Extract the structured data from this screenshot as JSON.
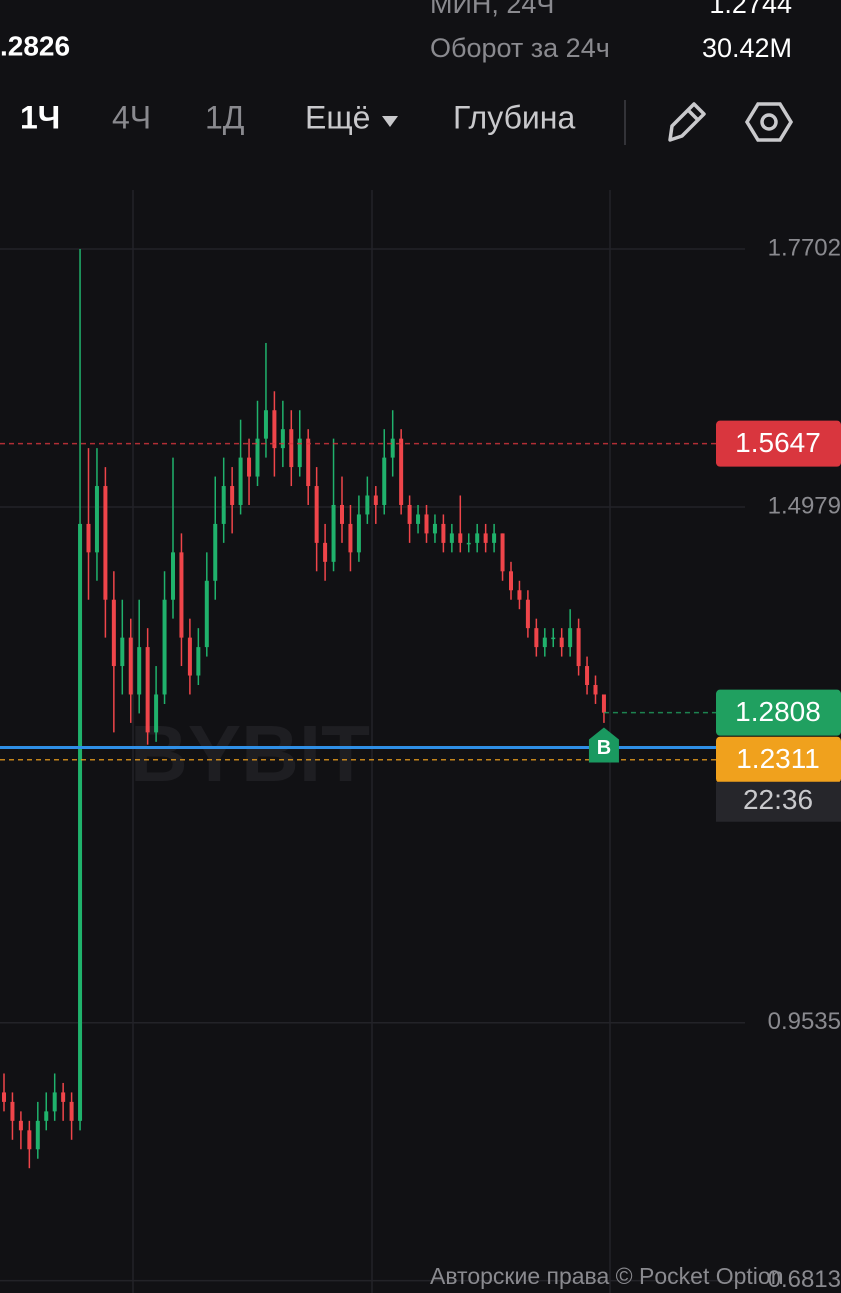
{
  "header": {
    "price_partial": ".2826",
    "low_label": "МИН, 24Ч",
    "low_value": "1.2744",
    "turnover_label": "Оборот за 24ч",
    "turnover_value": "30.42M"
  },
  "tabs": [
    "1Ч",
    "4Ч",
    "1Д",
    "Ещё",
    "Глубина"
  ],
  "watermark": "BYBIT",
  "copyright": "Авторские права © Pocket Option",
  "chart_data": {
    "type": "candlestick",
    "up_color": "#20b26c",
    "down_color": "#ef454a",
    "open": [
      0.88,
      0.87,
      0.85,
      0.84,
      0.82,
      0.85,
      0.86,
      0.88,
      0.87,
      0.85,
      1.48,
      1.45,
      1.52,
      1.4,
      1.33,
      1.36,
      1.3,
      1.35,
      1.26,
      1.3,
      1.4,
      1.45,
      1.36,
      1.32,
      1.35,
      1.42,
      1.48,
      1.52,
      1.5,
      1.55,
      1.53,
      1.57,
      1.6,
      1.56,
      1.58,
      1.54,
      1.57,
      1.52,
      1.46,
      1.44,
      1.5,
      1.48,
      1.45,
      1.49,
      1.51,
      1.5,
      1.55,
      1.57,
      1.5,
      1.48,
      1.49,
      1.47,
      1.48,
      1.46,
      1.47,
      1.46,
      1.46,
      1.47,
      1.46,
      1.47,
      1.43,
      1.41,
      1.4,
      1.37,
      1.35,
      1.36,
      1.36,
      1.35,
      1.37,
      1.33,
      1.31,
      1.3
    ],
    "high": [
      0.9,
      0.88,
      0.86,
      0.85,
      0.87,
      0.88,
      0.9,
      0.89,
      0.88,
      1.7702,
      1.56,
      1.56,
      1.54,
      1.43,
      1.4,
      1.38,
      1.4,
      1.37,
      1.33,
      1.43,
      1.55,
      1.47,
      1.38,
      1.37,
      1.45,
      1.53,
      1.55,
      1.54,
      1.59,
      1.57,
      1.61,
      1.671,
      1.62,
      1.61,
      1.6,
      1.6,
      1.58,
      1.54,
      1.48,
      1.57,
      1.53,
      1.5,
      1.51,
      1.53,
      1.52,
      1.58,
      1.6,
      1.58,
      1.51,
      1.5,
      1.5,
      1.49,
      1.49,
      1.48,
      1.51,
      1.47,
      1.48,
      1.48,
      1.48,
      1.47,
      1.44,
      1.42,
      1.41,
      1.38,
      1.37,
      1.37,
      1.37,
      1.39,
      1.38,
      1.34,
      1.32,
      1.3
    ],
    "low": [
      0.86,
      0.83,
      0.82,
      0.8,
      0.81,
      0.84,
      0.85,
      0.85,
      0.83,
      0.84,
      1.4,
      1.42,
      1.36,
      1.26,
      1.3,
      1.27,
      1.28,
      1.247,
      1.25,
      1.29,
      1.38,
      1.33,
      1.3,
      1.31,
      1.34,
      1.4,
      1.46,
      1.47,
      1.49,
      1.5,
      1.52,
      1.55,
      1.53,
      1.54,
      1.52,
      1.53,
      1.5,
      1.43,
      1.42,
      1.43,
      1.46,
      1.43,
      1.44,
      1.48,
      1.48,
      1.49,
      1.53,
      1.49,
      1.46,
      1.47,
      1.46,
      1.46,
      1.45,
      1.45,
      1.45,
      1.45,
      1.45,
      1.45,
      1.45,
      1.42,
      1.4,
      1.39,
      1.36,
      1.34,
      1.34,
      1.35,
      1.34,
      1.34,
      1.32,
      1.3,
      1.29,
      1.27
    ],
    "close": [
      0.87,
      0.85,
      0.84,
      0.82,
      0.85,
      0.86,
      0.88,
      0.87,
      0.85,
      1.48,
      1.45,
      1.52,
      1.4,
      1.33,
      1.36,
      1.3,
      1.35,
      1.26,
      1.3,
      1.4,
      1.45,
      1.36,
      1.32,
      1.35,
      1.42,
      1.48,
      1.52,
      1.5,
      1.55,
      1.53,
      1.57,
      1.6,
      1.56,
      1.58,
      1.54,
      1.57,
      1.52,
      1.46,
      1.44,
      1.5,
      1.48,
      1.45,
      1.49,
      1.51,
      1.5,
      1.55,
      1.57,
      1.5,
      1.48,
      1.49,
      1.47,
      1.48,
      1.46,
      1.47,
      1.46,
      1.46,
      1.47,
      1.46,
      1.47,
      1.43,
      1.41,
      1.4,
      1.37,
      1.35,
      1.36,
      1.36,
      1.35,
      1.37,
      1.33,
      1.31,
      1.3,
      1.2808
    ],
    "ylim": [
      0.6683,
      1.8641
    ],
    "yticks": [
      1.7702,
      1.4979,
      0.9535,
      0.6813
    ],
    "grid": true,
    "price_labels": [
      {
        "value": 1.5647,
        "color": "#d9363e"
      },
      {
        "value": 1.2808,
        "color": "#20a060"
      },
      {
        "value": 1.2311,
        "color": "#f0a11d"
      }
    ],
    "position_line": {
      "value": 1.244,
      "color": "#2f8fe6"
    },
    "marker": "B",
    "countdown": "22:36"
  }
}
